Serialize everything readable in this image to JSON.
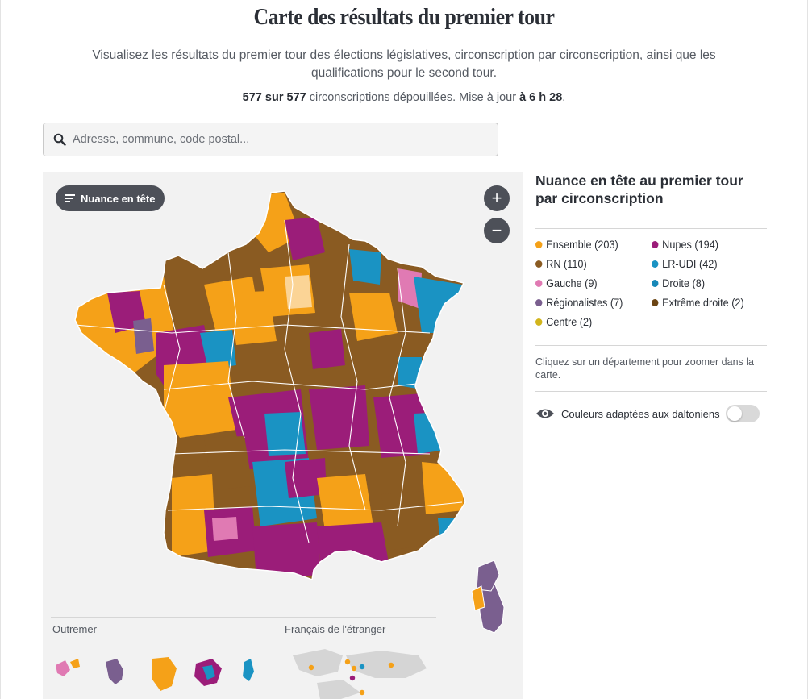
{
  "page": {
    "title": "Carte des résultats du premier tour",
    "subtitle": "Visualisez les résultats du premier tour des élections législatives, circonscription par circonscription, ainsi que les qualifications pour le second tour.",
    "stats": {
      "counted": "577",
      "sur": "sur",
      "total": "577",
      "counted_label": "circonscriptions dépouillées.",
      "update_label": "Mise à jour",
      "update_time": "à 6 h 28",
      "end": "."
    }
  },
  "search": {
    "placeholder": "Adresse, commune, code postal..."
  },
  "map": {
    "filter_button": "Nuance en tête",
    "zoom_in": "+",
    "zoom_out": "−",
    "outremer_label": "Outremer",
    "etranger_label": "Français de l'étranger"
  },
  "legend": {
    "title": "Nuance en tête au premier tour par circonscription",
    "items": [
      {
        "label": "Ensemble (203)",
        "color": "#f5a118"
      },
      {
        "label": "Nupes (194)",
        "color": "#9b1d79"
      },
      {
        "label": "RN (110)",
        "color": "#8a5b22"
      },
      {
        "label": "LR-UDI (42)",
        "color": "#1a93c3"
      },
      {
        "label": "Gauche (9)",
        "color": "#e07ab3"
      },
      {
        "label": "Droite (8)",
        "color": "#1788b8"
      },
      {
        "label": "Régionalistes (7)",
        "color": "#7a5f8f"
      },
      {
        "label": "Extrême droite (2)",
        "color": "#6b4413"
      },
      {
        "label": "Centre (2)",
        "color": "#d2b51c"
      }
    ],
    "hint": "Cliquez sur un département pour zoomer dans la carte.",
    "colorblind_label": "Couleurs adaptées aux daltoniens",
    "colorblind_enabled": false
  },
  "colors": {
    "ensemble": "#f5a118",
    "nupes": "#9b1d79",
    "rn": "#8a5b22",
    "lr_udi": "#1a93c3",
    "gauche": "#e07ab3",
    "regionalistes": "#7a5f8f",
    "panel_bg": "#f2f2f2",
    "button_bg": "#4d5058"
  }
}
